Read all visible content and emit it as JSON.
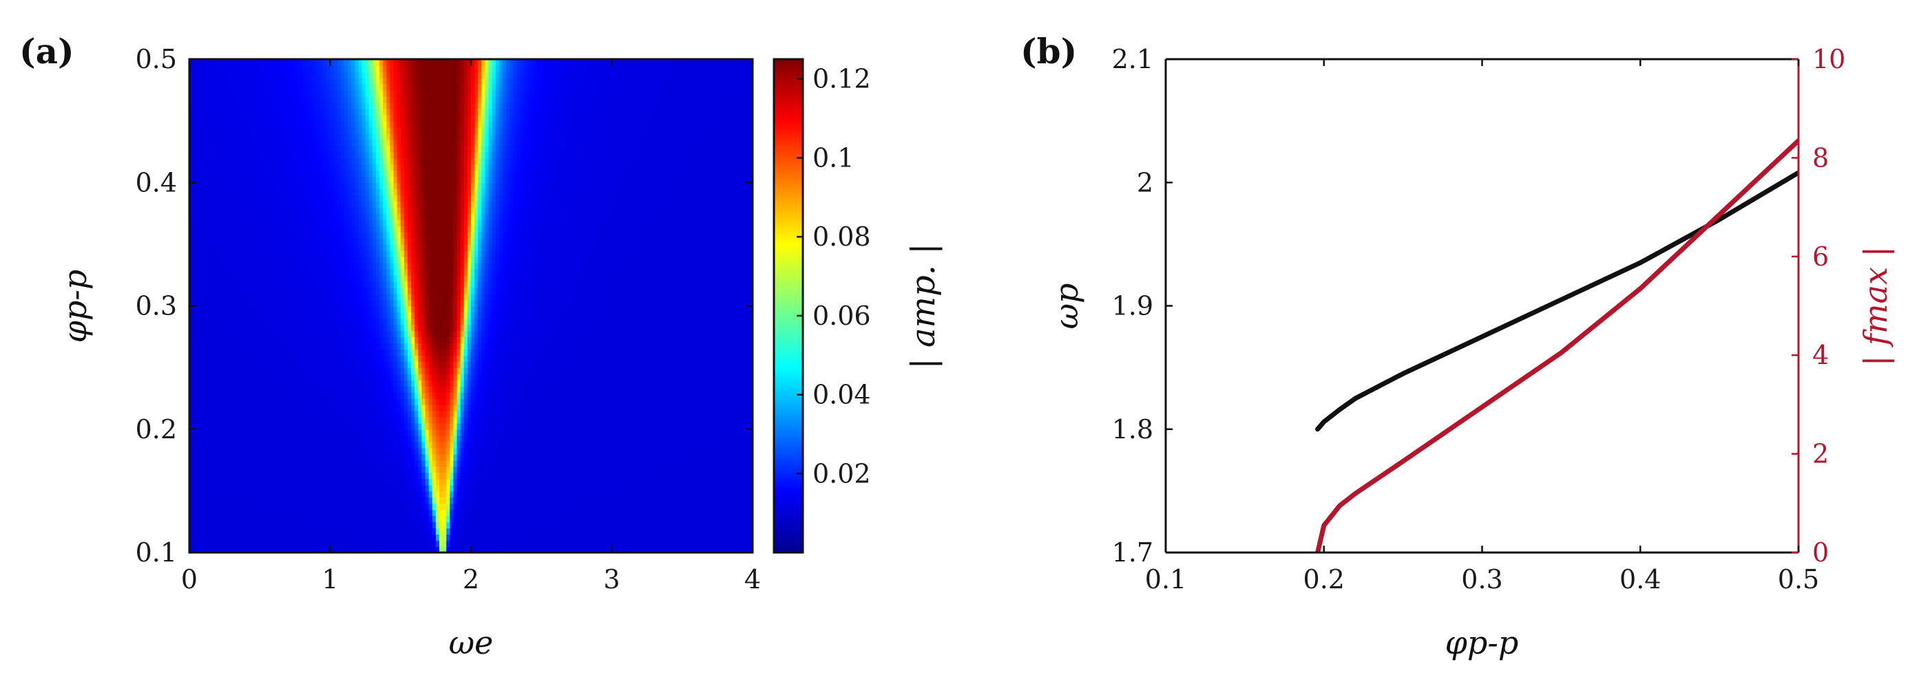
{
  "figure": {
    "panel_a_label": "(a)",
    "panel_b_label": "(b)"
  },
  "chart_data": [
    {
      "id": "a",
      "type": "heatmap",
      "xlabel": "ωe",
      "ylabel": "φp-p",
      "colorbar_label": "| amp. |",
      "xlim": [
        0,
        4
      ],
      "ylim": [
        0.1,
        0.5
      ],
      "xticks": [
        "0",
        "1",
        "2",
        "3",
        "4"
      ],
      "yticks": [
        "0.1",
        "0.2",
        "0.3",
        "0.4",
        "0.5"
      ],
      "colorbar_ticks": [
        "0.02",
        "0.04",
        "0.06",
        "0.08",
        "0.1",
        "0.12"
      ],
      "colorbar_range": [
        0.0,
        0.125
      ],
      "colormap": "jet",
      "resonance_tongue": {
        "apex_omega": 1.8,
        "apex_phi": 0.1,
        "left_edge_at_phi_0_5": 1.45,
        "right_edge_at_phi_0_5": 2.02,
        "peak_amp": 0.125,
        "background_amp": 0.0
      }
    },
    {
      "id": "b",
      "type": "line",
      "xlabel": "φp-p",
      "ylabel": "ωp",
      "ylabel_right": "| fmax |",
      "xlim": [
        0.1,
        0.5
      ],
      "ylim": [
        1.7,
        2.1
      ],
      "ylim_right": [
        0,
        10
      ],
      "xticks": [
        "0.1",
        "0.2",
        "0.3",
        "0.4",
        "0.5"
      ],
      "yticks": [
        "1.7",
        "1.8",
        "1.9",
        "2",
        "2.1"
      ],
      "yticks_right": [
        "0",
        "2",
        "4",
        "6",
        "8",
        "10"
      ],
      "series": [
        {
          "axis": "left",
          "color": "#111111",
          "x": [
            0.196,
            0.2,
            0.21,
            0.22,
            0.25,
            0.3,
            0.35,
            0.4,
            0.45,
            0.5
          ],
          "y": [
            1.8,
            1.806,
            1.816,
            1.825,
            1.845,
            1.875,
            1.905,
            1.935,
            1.97,
            2.008
          ]
        },
        {
          "axis": "right",
          "color": "#b5162b",
          "x": [
            0.196,
            0.2,
            0.21,
            0.22,
            0.25,
            0.3,
            0.35,
            0.4,
            0.45,
            0.5
          ],
          "y": [
            0.0,
            0.55,
            0.95,
            1.2,
            1.85,
            2.95,
            4.05,
            5.35,
            6.85,
            8.35
          ]
        }
      ]
    }
  ]
}
